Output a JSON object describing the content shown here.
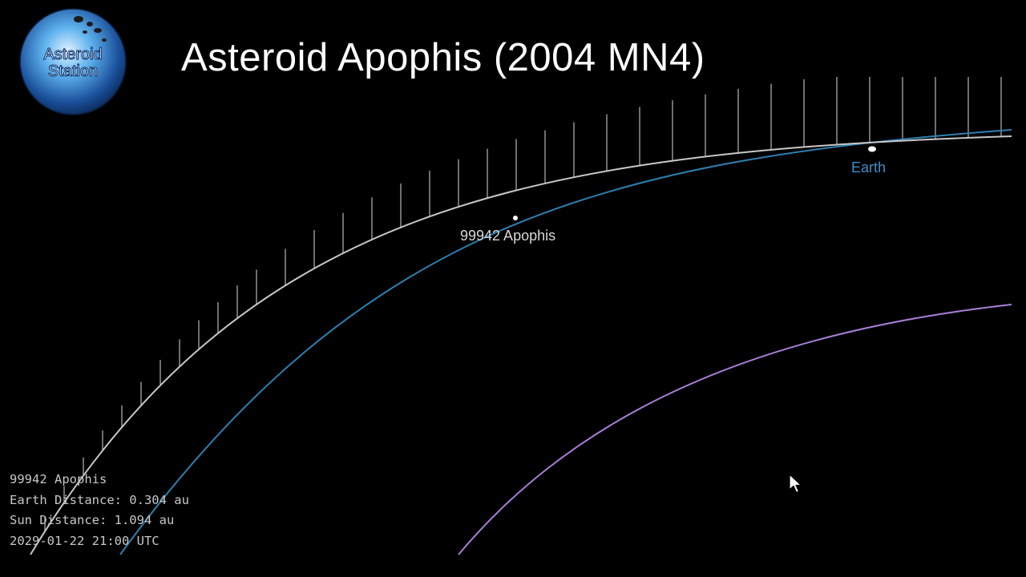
{
  "logo": {
    "line1": "Asteroid",
    "line2": "Station"
  },
  "title": "Asteroid Apophis (2004 MN4)",
  "bodies": {
    "asteroid_label": "99942 Apophis",
    "planet_label": "Earth"
  },
  "info": {
    "name": "99942 Apophis",
    "earth_distance": "Earth Distance: 0.304 au",
    "sun_distance": "Sun Distance: 1.094 au",
    "timestamp": "2029-01-22 21:00 UTC"
  },
  "colors": {
    "background": "#000000",
    "apophis_orbit": "#c8c8c8",
    "earth_orbit": "#2e7fb0",
    "venus_orbit": "#a77fd6",
    "earth_label": "#3d8fc8"
  }
}
